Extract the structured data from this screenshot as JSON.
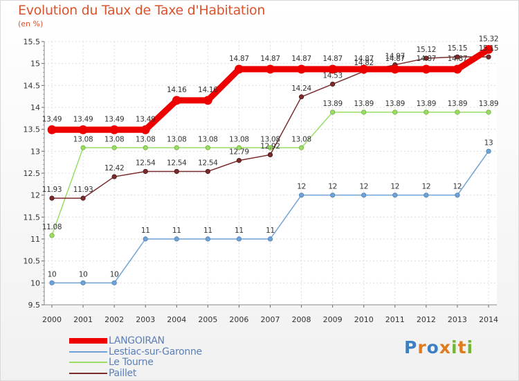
{
  "title": "Evolution du Taux de Taxe d'Habitation",
  "unit": "(en %)",
  "logo": {
    "text": "Proxiti",
    "letter_colors": [
      "#3f7fc1",
      "#e07b1f",
      "#3f7fc1",
      "#e07b1f",
      "#73b536",
      "#e07b1f",
      "#73b536"
    ]
  },
  "chart_data": {
    "type": "line",
    "x": [
      "2000",
      "2001",
      "2002",
      "2003",
      "2004",
      "2005",
      "2006",
      "2007",
      "2008",
      "2009",
      "2010",
      "2011",
      "2012",
      "2013",
      "2014"
    ],
    "ylim": [
      9.5,
      15.5
    ],
    "yticks": [
      "9.5",
      "10",
      "10.5",
      "11",
      "11.5",
      "12",
      "12.5",
      "13",
      "13.5",
      "14",
      "14.5",
      "15",
      "15.5"
    ],
    "grid": true,
    "legend_position": "bottom-left",
    "series": [
      {
        "name": "LANGOIRAN",
        "color": "#ee0000",
        "width": 9,
        "values": [
          13.49,
          13.49,
          13.49,
          13.49,
          14.16,
          14.16,
          14.87,
          14.87,
          14.87,
          14.87,
          14.87,
          14.87,
          14.87,
          14.87,
          15.32
        ],
        "labels": [
          "13.49",
          "13.49",
          "13.49",
          "13.49",
          "14.16",
          "14.16",
          "14.87",
          "14.87",
          "14.87",
          "14.87",
          "14.87",
          "14.87",
          "14.87",
          "14.87",
          "15.32"
        ]
      },
      {
        "name": "Lestiac-sur-Garonne",
        "color": "#6fa2d6",
        "width": 1.5,
        "values": [
          10,
          10,
          10,
          11,
          11,
          11,
          11,
          11,
          12,
          12,
          12,
          12,
          12,
          12,
          13
        ],
        "labels": [
          "10",
          "10",
          "10",
          "11",
          "11",
          "11",
          "11",
          "11",
          "12",
          "12",
          "12",
          "12",
          "12",
          "12",
          "13"
        ]
      },
      {
        "name": "Le Tourne",
        "color": "#99dd66",
        "width": 1.5,
        "values": [
          11.08,
          13.08,
          13.08,
          13.08,
          13.08,
          13.08,
          13.08,
          13.08,
          13.08,
          13.89,
          13.89,
          13.89,
          13.89,
          13.89,
          13.89
        ],
        "labels": [
          "11.08",
          "13.08",
          "13.08",
          "13.08",
          "13.08",
          "13.08",
          "13.08",
          "13.08",
          "13.08",
          "13.89",
          "13.89",
          "13.89",
          "13.89",
          "13.89",
          "13.89"
        ]
      },
      {
        "name": "Paillet",
        "color": "#7a2b2b",
        "width": 1.5,
        "values": [
          11.93,
          11.93,
          12.42,
          12.54,
          12.54,
          12.54,
          12.79,
          12.92,
          14.24,
          14.53,
          14.82,
          14.97,
          15.12,
          15.15,
          15.15
        ],
        "labels": [
          "11.93",
          "11.93",
          "12.42",
          "12.54",
          "12.54",
          "12.54",
          "12.79",
          "12.92",
          "14.24",
          "14.53",
          "14.82",
          "14.97",
          "15.12",
          "15.15",
          "15.15"
        ]
      }
    ]
  }
}
